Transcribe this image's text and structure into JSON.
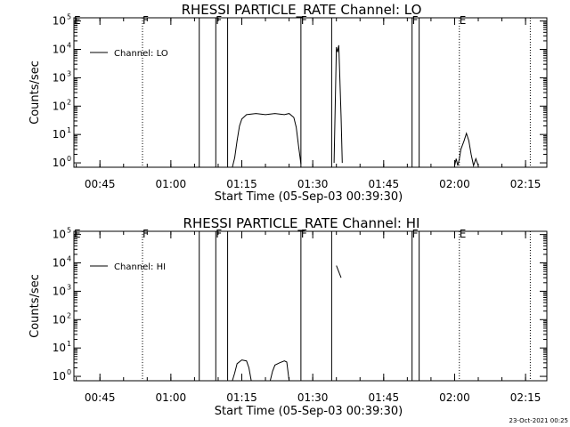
{
  "chart_data": [
    {
      "type": "line",
      "title": "RHESSI PARTICLE_RATE Channel: LO",
      "xlabel": "Start Time (05-Sep-03 00:39:30)",
      "ylabel": "Counts/sec",
      "yscale": "log",
      "ylim": [
        0.7,
        130000
      ],
      "xlim": [
        "00:39:30",
        "02:19:30"
      ],
      "x_ticks": [
        "00:45",
        "01:00",
        "01:15",
        "01:30",
        "01:45",
        "02:00",
        "02:15"
      ],
      "y_ticks": [
        {
          "base": "10",
          "exp": "0"
        },
        {
          "base": "10",
          "exp": "1"
        },
        {
          "base": "10",
          "exp": "2"
        },
        {
          "base": "10",
          "exp": "3"
        },
        {
          "base": "10",
          "exp": "4"
        },
        {
          "base": "10",
          "exp": "5"
        }
      ],
      "legend": {
        "label": "Channel: LO",
        "position": "top-left"
      },
      "flags": [
        {
          "time": "00:39:30",
          "label": "E",
          "style": "dotted"
        },
        {
          "time": "00:54:00",
          "label": "F",
          "style": "dotted"
        },
        {
          "time": "01:06:00",
          "label": "",
          "style": "solid"
        },
        {
          "time": "01:09:30",
          "label": "F",
          "style": "solid"
        },
        {
          "time": "01:12:00",
          "label": "",
          "style": "solid"
        },
        {
          "time": "01:27:30",
          "label": "F",
          "style": "solid"
        },
        {
          "time": "01:34:00",
          "label": "",
          "style": "solid"
        },
        {
          "time": "01:51:00",
          "label": "F",
          "style": "solid"
        },
        {
          "time": "01:52:30",
          "label": "",
          "style": "solid"
        },
        {
          "time": "02:01:00",
          "label": "E",
          "style": "dotted"
        },
        {
          "time": "02:16:00",
          "label": "",
          "style": "dotted"
        }
      ],
      "series": [
        {
          "name": "Channel: LO",
          "segments": [
            [
              [
                "01:13:00",
                0.7
              ],
              [
                "01:13:30",
                1.5
              ],
              [
                "01:14:00",
                6
              ],
              [
                "01:14:30",
                20
              ],
              [
                "01:15:00",
                35
              ],
              [
                "01:16:00",
                50
              ],
              [
                "01:18:00",
                55
              ],
              [
                "01:20:00",
                50
              ],
              [
                "01:22:00",
                55
              ],
              [
                "01:24:00",
                50
              ],
              [
                "01:25:00",
                55
              ],
              [
                "01:26:00",
                40
              ],
              [
                "01:26:30",
                18
              ],
              [
                "01:27:00",
                4
              ],
              [
                "01:27:30",
                0.9
              ]
            ],
            [
              [
                "01:34:30",
                1
              ],
              [
                "01:35:00",
                12000
              ],
              [
                "01:35:15",
                8000
              ],
              [
                "01:35:30",
                14000
              ],
              [
                "01:36:00",
                40
              ],
              [
                "01:36:15",
                1
              ]
            ],
            [
              [
                "02:00:00",
                0.8
              ],
              [
                "02:00:20",
                1.4
              ],
              [
                "02:00:40",
                0.8
              ],
              [
                "02:01:00",
                1.4
              ],
              [
                "02:01:20",
                3
              ],
              [
                "02:02:00",
                6
              ],
              [
                "02:02:30",
                11
              ],
              [
                "02:03:00",
                6
              ],
              [
                "02:03:30",
                2
              ],
              [
                "02:04:00",
                0.8
              ],
              [
                "02:04:30",
                1.4
              ],
              [
                "02:05:00",
                0.8
              ]
            ]
          ]
        }
      ]
    },
    {
      "type": "line",
      "title": "RHESSI PARTICLE_RATE Channel: HI",
      "xlabel": "Start Time (05-Sep-03 00:39:30)",
      "ylabel": "Counts/sec",
      "yscale": "log",
      "ylim": [
        0.7,
        130000
      ],
      "xlim": [
        "00:39:30",
        "02:19:30"
      ],
      "x_ticks": [
        "00:45",
        "01:00",
        "01:15",
        "01:30",
        "01:45",
        "02:00",
        "02:15"
      ],
      "y_ticks": [
        {
          "base": "10",
          "exp": "0"
        },
        {
          "base": "10",
          "exp": "1"
        },
        {
          "base": "10",
          "exp": "2"
        },
        {
          "base": "10",
          "exp": "3"
        },
        {
          "base": "10",
          "exp": "4"
        },
        {
          "base": "10",
          "exp": "5"
        }
      ],
      "legend": {
        "label": "Channel: HI",
        "position": "top-left"
      },
      "flags": [
        {
          "time": "00:39:30",
          "label": "E",
          "style": "dotted"
        },
        {
          "time": "00:54:00",
          "label": "F",
          "style": "dotted"
        },
        {
          "time": "01:06:00",
          "label": "",
          "style": "solid"
        },
        {
          "time": "01:09:30",
          "label": "F",
          "style": "solid"
        },
        {
          "time": "01:12:00",
          "label": "",
          "style": "solid"
        },
        {
          "time": "01:27:30",
          "label": "F",
          "style": "solid"
        },
        {
          "time": "01:34:00",
          "label": "",
          "style": "solid"
        },
        {
          "time": "01:51:00",
          "label": "F",
          "style": "solid"
        },
        {
          "time": "01:52:30",
          "label": "",
          "style": "solid"
        },
        {
          "time": "02:01:00",
          "label": "E",
          "style": "dotted"
        },
        {
          "time": "02:16:00",
          "label": "",
          "style": "dotted"
        }
      ],
      "series": [
        {
          "name": "Channel: HI",
          "segments": [
            [
              [
                "01:13:00",
                0.7
              ],
              [
                "01:13:30",
                1.3
              ],
              [
                "01:14:00",
                2.8
              ],
              [
                "01:15:00",
                3.8
              ],
              [
                "01:16:00",
                3.5
              ],
              [
                "01:16:30",
                2
              ],
              [
                "01:17:00",
                0.7
              ]
            ],
            [
              [
                "01:21:00",
                0.7
              ],
              [
                "01:21:30",
                1.5
              ],
              [
                "01:22:00",
                2.5
              ],
              [
                "01:23:00",
                3
              ],
              [
                "01:24:00",
                3.5
              ],
              [
                "01:24:30",
                3.2
              ],
              [
                "01:25:00",
                0.7
              ]
            ],
            [
              [
                "01:35:00",
                8000
              ],
              [
                "01:36:00",
                3000
              ]
            ]
          ]
        }
      ]
    }
  ],
  "footer": {
    "timestamp": "23-Oct-2021 00:25"
  }
}
